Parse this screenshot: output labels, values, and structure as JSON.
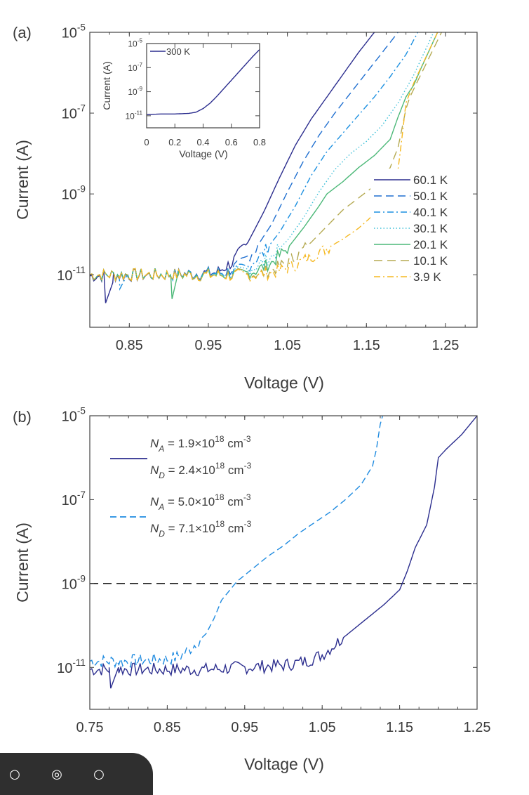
{
  "panels": [
    {
      "id": "a",
      "panel_label": "(a)",
      "ylabel": "Current (A)",
      "xlabel": "Voltage (V)",
      "xlim": [
        0.8,
        1.29
      ],
      "ylim_log10": [
        -12.3,
        -5
      ],
      "xticks": [
        0.85,
        0.95,
        1.05,
        1.15,
        1.25
      ],
      "xtick_labels": [
        "0.85",
        "0.95",
        "1.05",
        "1.15",
        "1.25"
      ],
      "yticks_log10": [
        -11,
        -9,
        -7,
        -5
      ],
      "ytick_labels": [
        "10",
        "10",
        "10",
        "10"
      ],
      "ytick_exponents": [
        "-11",
        "-9",
        "-7",
        "-5"
      ]
    },
    {
      "id": "b",
      "panel_label": "(b)",
      "ylabel": "Current (A)",
      "xlabel": "Voltage (V)",
      "xlim": [
        0.75,
        1.25
      ],
      "ylim_log10": [
        -12,
        -5
      ],
      "xticks": [
        0.75,
        0.85,
        0.95,
        1.05,
        1.15,
        1.25
      ],
      "xtick_labels": [
        "0.75",
        "0.85",
        "0.95",
        "1.05",
        "1.15",
        "1.25"
      ],
      "yticks_log10": [
        -11,
        -9,
        -7,
        -5
      ],
      "ytick_labels": [
        "10",
        "10",
        "10",
        "10"
      ],
      "ytick_exponents": [
        "-11",
        "-9",
        "-7",
        "-5"
      ]
    }
  ],
  "chart_data": [
    {
      "type": "line",
      "panel": "a",
      "xlabel": "Voltage (V)",
      "ylabel": "Current (A)",
      "y_scale": "log",
      "xlim": [
        0.8,
        1.29
      ],
      "ylim": [
        5e-13,
        1e-05
      ],
      "legend_placement": "right",
      "series": [
        {
          "name": "60.1 K",
          "color": "#2b2d8e",
          "dash": "solid",
          "noise": true,
          "dip": [
            [
              0.82,
              -11.7
            ],
            [
              0.829,
              -11.2
            ]
          ],
          "points": [
            [
              0.8,
              -11.03
            ],
            [
              0.9,
              -11.0
            ],
            [
              0.96,
              -10.95
            ],
            [
              0.98,
              -10.7
            ],
            [
              1.0,
              -10.2
            ],
            [
              1.02,
              -9.45
            ],
            [
              1.04,
              -8.6
            ],
            [
              1.06,
              -7.8
            ],
            [
              1.08,
              -7.15
            ],
            [
              1.1,
              -6.6
            ],
            [
              1.12,
              -6.05
            ],
            [
              1.14,
              -5.5
            ],
            [
              1.16,
              -5.0
            ]
          ]
        },
        {
          "name": "50.1 K",
          "color": "#1f6fd0",
          "dash": "long",
          "noise": true,
          "points": [
            [
              0.8,
              -11.0
            ],
            [
              0.9,
              -11.0
            ],
            [
              0.97,
              -10.95
            ],
            [
              0.99,
              -10.75
            ],
            [
              1.01,
              -10.35
            ],
            [
              1.03,
              -9.75
            ],
            [
              1.05,
              -8.95
            ],
            [
              1.07,
              -8.2
            ],
            [
              1.09,
              -7.55
            ],
            [
              1.11,
              -7.0
            ],
            [
              1.13,
              -6.5
            ],
            [
              1.15,
              -6.0
            ],
            [
              1.17,
              -5.5
            ],
            [
              1.19,
              -5.0
            ]
          ]
        },
        {
          "name": "40.1 K",
          "color": "#1a8fe0",
          "dash": "dashdot",
          "noise": true,
          "dip": [
            [
              0.838,
              -11.35
            ],
            [
              0.846,
              -11.05
            ]
          ],
          "points": [
            [
              0.8,
              -11.0
            ],
            [
              0.9,
              -11.0
            ],
            [
              0.98,
              -10.95
            ],
            [
              1.0,
              -10.8
            ],
            [
              1.02,
              -10.45
            ],
            [
              1.04,
              -9.95
            ],
            [
              1.06,
              -9.3
            ],
            [
              1.08,
              -8.55
            ],
            [
              1.1,
              -7.95
            ],
            [
              1.12,
              -7.5
            ],
            [
              1.14,
              -7.05
            ],
            [
              1.16,
              -6.6
            ],
            [
              1.18,
              -6.1
            ],
            [
              1.2,
              -5.55
            ],
            [
              1.215,
              -5.0
            ]
          ]
        },
        {
          "name": "30.1 K",
          "color": "#3bbfd8",
          "dash": "dotted",
          "noise": true,
          "points": [
            [
              0.8,
              -11.0
            ],
            [
              0.9,
              -11.0
            ],
            [
              0.99,
              -10.95
            ],
            [
              1.01,
              -10.8
            ],
            [
              1.03,
              -10.55
            ],
            [
              1.05,
              -10.15
            ],
            [
              1.07,
              -9.6
            ],
            [
              1.09,
              -8.95
            ],
            [
              1.11,
              -8.4
            ],
            [
              1.13,
              -8.0
            ],
            [
              1.15,
              -7.7
            ],
            [
              1.17,
              -7.3
            ],
            [
              1.19,
              -6.75
            ],
            [
              1.21,
              -6.05
            ],
            [
              1.235,
              -5.0
            ]
          ]
        },
        {
          "name": "20.1 K",
          "color": "#4cb878",
          "dash": "solid",
          "noise": true,
          "dip": [
            [
              0.904,
              -11.6
            ],
            [
              0.91,
              -11.1
            ]
          ],
          "points": [
            [
              0.8,
              -11.0
            ],
            [
              0.9,
              -11.0
            ],
            [
              0.99,
              -11.0
            ],
            [
              1.01,
              -10.9
            ],
            [
              1.03,
              -10.7
            ],
            [
              1.05,
              -10.35
            ],
            [
              1.07,
              -9.85
            ],
            [
              1.09,
              -9.3
            ],
            [
              1.1,
              -9.0
            ],
            [
              1.12,
              -8.7
            ],
            [
              1.14,
              -8.35
            ],
            [
              1.16,
              -8.05
            ],
            [
              1.18,
              -7.65
            ],
            [
              1.19,
              -7.1
            ],
            [
              1.2,
              -6.6
            ],
            [
              1.21,
              -6.3
            ],
            [
              1.22,
              -5.85
            ],
            [
              1.24,
              -5.0
            ]
          ]
        },
        {
          "name": "10.1 K",
          "color": "#b5aa52",
          "dash": "longdash",
          "noise": true,
          "points": [
            [
              0.8,
              -11.0
            ],
            [
              0.9,
              -11.0
            ],
            [
              1.0,
              -11.0
            ],
            [
              1.02,
              -10.95
            ],
            [
              1.04,
              -10.8
            ],
            [
              1.06,
              -10.55
            ],
            [
              1.08,
              -10.2
            ],
            [
              1.1,
              -9.8
            ],
            [
              1.12,
              -9.4
            ],
            [
              1.14,
              -9.1
            ],
            [
              1.16,
              -8.8
            ],
            [
              1.18,
              -8.35
            ],
            [
              1.19,
              -7.85
            ],
            [
              1.2,
              -6.9
            ],
            [
              1.205,
              -6.6
            ],
            [
              1.22,
              -6.0
            ],
            [
              1.245,
              -5.0
            ]
          ]
        },
        {
          "name": "3.9 K",
          "color": "#f5b820",
          "dash": "dashdot",
          "noise": true,
          "points": [
            [
              0.8,
              -11.0
            ],
            [
              0.9,
              -11.0
            ],
            [
              1.0,
              -11.02
            ],
            [
              1.02,
              -10.98
            ],
            [
              1.04,
              -10.9
            ],
            [
              1.06,
              -10.75
            ],
            [
              1.08,
              -10.55
            ],
            [
              1.1,
              -10.35
            ],
            [
              1.12,
              -10.12
            ],
            [
              1.14,
              -9.85
            ],
            [
              1.16,
              -9.5
            ],
            [
              1.18,
              -8.95
            ],
            [
              1.19,
              -8.4
            ],
            [
              1.195,
              -7.6
            ],
            [
              1.2,
              -6.75
            ],
            [
              1.21,
              -6.25
            ],
            [
              1.24,
              -5.0
            ]
          ]
        }
      ]
    },
    {
      "type": "line",
      "panel": "a-inset",
      "xlabel": "Voltage (V)",
      "ylabel": "Current (A)",
      "y_scale": "log",
      "xlim": [
        0,
        0.8
      ],
      "ylim": [
        1e-12,
        1e-05
      ],
      "xticks": [
        0,
        0.2,
        0.4,
        0.6,
        0.8
      ],
      "xtick_labels": [
        "0",
        "0.2",
        "0.4",
        "0.6",
        "0.8"
      ],
      "yticks_log10": [
        -11,
        -9,
        -7,
        -5
      ],
      "ytick_labels": [
        "10",
        "10",
        "10",
        "10"
      ],
      "ytick_exponents": [
        "-11",
        "-9",
        "-7",
        "-5"
      ],
      "legend_placement": "top-left",
      "series": [
        {
          "name": "300 K",
          "color": "#2b2d8e",
          "dash": "solid",
          "noise": false,
          "points": [
            [
              0,
              -10.9
            ],
            [
              0.1,
              -10.85
            ],
            [
              0.2,
              -10.85
            ],
            [
              0.3,
              -10.8
            ],
            [
              0.35,
              -10.7
            ],
            [
              0.4,
              -10.4
            ],
            [
              0.45,
              -9.95
            ],
            [
              0.5,
              -9.35
            ],
            [
              0.55,
              -8.7
            ],
            [
              0.6,
              -8.05
            ],
            [
              0.65,
              -7.4
            ],
            [
              0.7,
              -6.75
            ],
            [
              0.75,
              -6.1
            ],
            [
              0.8,
              -5.5
            ]
          ]
        }
      ]
    },
    {
      "type": "line",
      "panel": "b",
      "xlabel": "Voltage (V)",
      "ylabel": "Current (A)",
      "y_scale": "log",
      "xlim": [
        0.75,
        1.25
      ],
      "ylim": [
        1e-12,
        1e-05
      ],
      "legend_placement": "top-left",
      "series": [
        {
          "name": "N_A = 1.9×10^18 cm^-3, N_D = 2.4×10^18 cm^-3",
          "color": "#2b2d8e",
          "dash": "solid",
          "noise": true,
          "dip": [
            [
              0.777,
              -11.5
            ],
            [
              0.785,
              -11.1
            ]
          ],
          "points": [
            [
              0.75,
              -11.05
            ],
            [
              0.8,
              -11.05
            ],
            [
              0.85,
              -11.05
            ],
            [
              0.9,
              -11.05
            ],
            [
              0.95,
              -11.0
            ],
            [
              1.0,
              -10.95
            ],
            [
              1.03,
              -10.85
            ],
            [
              1.05,
              -10.7
            ],
            [
              1.07,
              -10.4
            ],
            [
              1.09,
              -10.1
            ],
            [
              1.11,
              -9.8
            ],
            [
              1.13,
              -9.5
            ],
            [
              1.15,
              -9.15
            ],
            [
              1.16,
              -8.7
            ],
            [
              1.17,
              -8.15
            ],
            [
              1.185,
              -7.6
            ],
            [
              1.195,
              -6.7
            ],
            [
              1.2,
              -6.0
            ],
            [
              1.21,
              -5.8
            ],
            [
              1.23,
              -5.45
            ],
            [
              1.25,
              -5.0
            ]
          ]
        },
        {
          "name": "N_A = 5.0×10^18 cm^-3, N_D = 7.1×10^18 cm^-3",
          "color": "#1f8be0",
          "dash": "dashed",
          "noise": true,
          "points": [
            [
              0.75,
              -10.85
            ],
            [
              0.8,
              -10.85
            ],
            [
              0.85,
              -10.8
            ],
            [
              0.865,
              -10.75
            ],
            [
              0.88,
              -10.55
            ],
            [
              0.9,
              -10.2
            ],
            [
              0.91,
              -9.85
            ],
            [
              0.92,
              -9.4
            ],
            [
              0.94,
              -8.95
            ],
            [
              0.96,
              -8.65
            ],
            [
              0.98,
              -8.35
            ],
            [
              1.0,
              -8.1
            ],
            [
              1.02,
              -7.8
            ],
            [
              1.04,
              -7.55
            ],
            [
              1.06,
              -7.3
            ],
            [
              1.08,
              -7.0
            ],
            [
              1.1,
              -6.65
            ],
            [
              1.115,
              -6.2
            ],
            [
              1.12,
              -5.8
            ],
            [
              1.125,
              -5.2
            ],
            [
              1.128,
              -5.0
            ]
          ]
        }
      ],
      "reference_line": {
        "y": 1e-09,
        "style": "dashed",
        "color": "#222222"
      }
    }
  ],
  "inset_legend": {
    "label": "300 K"
  },
  "legend_a": [
    "60.1 K",
    "50.1 K",
    "40.1 K",
    "30.1 K",
    "20.1 K",
    "10.1 K",
    "3.9 K"
  ],
  "legend_b": [
    {
      "lines": [
        {
          "sym": "N",
          "sub": "A",
          "text": " = 1.9",
          "times": "×",
          "base": "10",
          "exp": "18",
          "unit": " cm",
          "uexp": "-3"
        },
        {
          "sym": "N",
          "sub": "D",
          "text": " = 2.4",
          "times": "×",
          "base": "10",
          "exp": "18",
          "unit": " cm",
          "uexp": "-3"
        }
      ]
    },
    {
      "lines": [
        {
          "sym": "N",
          "sub": "A",
          "text": " = 5.0",
          "times": "×",
          "base": "10",
          "exp": "18",
          "unit": " cm",
          "uexp": "-3"
        },
        {
          "sym": "N",
          "sub": "D",
          "text": " = 7.1",
          "times": "×",
          "base": "10",
          "exp": "18",
          "unit": " cm",
          "uexp": "-3"
        }
      ]
    }
  ],
  "overlay": {
    "icons": [
      "clock-icon",
      "lock-icon",
      "search-icon"
    ]
  }
}
